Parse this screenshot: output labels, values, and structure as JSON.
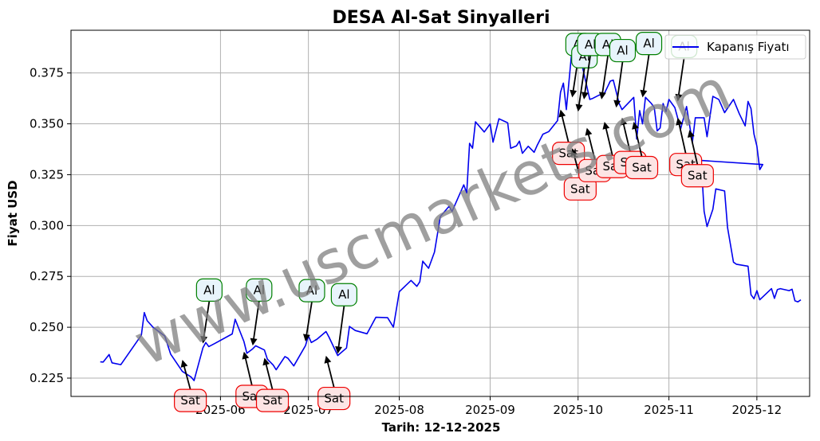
{
  "chart_data": {
    "type": "line",
    "title": "DESA Al-Sat Sinyalleri",
    "xlabel": "Tarih: 12-12-2025",
    "ylabel": "Fiyat USD",
    "watermark": "www.uscmarkets.com",
    "ylim": [
      0.216,
      0.396
    ],
    "xlim": [
      "2025-04-11",
      "2025-12-19"
    ],
    "grid": true,
    "legend": {
      "placement": "top-right",
      "entries": [
        "Kapanış Fiyatı"
      ]
    },
    "colors": {
      "line": "#0000ee",
      "buy": "#008000",
      "sell": "#ee0000",
      "buy_fill": "#e8f4fb",
      "sell_fill": "#fde4e4",
      "grid": "#b0b0b0"
    },
    "x_ticks": [
      {
        "date": "2025-06-01",
        "label": "2025-06"
      },
      {
        "date": "2025-07-01",
        "label": "2025-07"
      },
      {
        "date": "2025-08-01",
        "label": "2025-08"
      },
      {
        "date": "2025-09-01",
        "label": "2025-09"
      },
      {
        "date": "2025-10-01",
        "label": "2025-10"
      },
      {
        "date": "2025-11-01",
        "label": "2025-11"
      },
      {
        "date": "2025-12-01",
        "label": "2025-12"
      }
    ],
    "y_ticks": [
      {
        "value": 0.225,
        "label": "0.225"
      },
      {
        "value": 0.25,
        "label": "0.250"
      },
      {
        "value": 0.275,
        "label": "0.275"
      },
      {
        "value": 0.3,
        "label": "0.300"
      },
      {
        "value": 0.325,
        "label": "0.325"
      },
      {
        "value": 0.35,
        "label": "0.350"
      },
      {
        "value": 0.375,
        "label": "0.375"
      }
    ],
    "series": [
      {
        "name": "Kapanış Fiyatı",
        "points": [
          [
            "2025-04-21",
            0.233
          ],
          [
            "2025-04-22",
            0.2329
          ],
          [
            "2025-04-24",
            0.2366
          ],
          [
            "2025-04-25",
            0.2325
          ],
          [
            "2025-04-28",
            0.2316
          ],
          [
            "2025-05-05",
            0.2461
          ],
          [
            "2025-05-06",
            0.2572
          ],
          [
            "2025-05-07",
            0.2532
          ],
          [
            "2025-05-09",
            0.25
          ],
          [
            "2025-05-13",
            0.2457
          ],
          [
            "2025-05-15",
            0.2368
          ],
          [
            "2025-05-19",
            0.2283
          ],
          [
            "2025-05-22",
            0.2255
          ],
          [
            "2025-05-23",
            0.2238
          ],
          [
            "2025-05-26",
            0.2399
          ],
          [
            "2025-05-27",
            0.2425
          ],
          [
            "2025-05-28",
            0.2405
          ],
          [
            "2025-05-30",
            0.242
          ],
          [
            "2025-06-05",
            0.2467
          ],
          [
            "2025-06-06",
            0.2539
          ],
          [
            "2025-06-09",
            0.243
          ],
          [
            "2025-06-10",
            0.2372
          ],
          [
            "2025-06-12",
            0.2394
          ],
          [
            "2025-06-13",
            0.2409
          ],
          [
            "2025-06-16",
            0.2388
          ],
          [
            "2025-06-17",
            0.2343
          ],
          [
            "2025-06-19",
            0.2314
          ],
          [
            "2025-06-20",
            0.2291
          ],
          [
            "2025-06-23",
            0.2356
          ],
          [
            "2025-06-24",
            0.2348
          ],
          [
            "2025-06-26",
            0.231
          ],
          [
            "2025-06-30",
            0.241
          ],
          [
            "2025-07-01",
            0.2458
          ],
          [
            "2025-07-02",
            0.2425
          ],
          [
            "2025-07-04",
            0.2442
          ],
          [
            "2025-07-07",
            0.2479
          ],
          [
            "2025-07-08",
            0.2452
          ],
          [
            "2025-07-11",
            0.2361
          ],
          [
            "2025-07-14",
            0.2398
          ],
          [
            "2025-07-15",
            0.2504
          ],
          [
            "2025-07-17",
            0.2484
          ],
          [
            "2025-07-21",
            0.2468
          ],
          [
            "2025-07-24",
            0.2549
          ],
          [
            "2025-07-28",
            0.2547
          ],
          [
            "2025-07-30",
            0.2501
          ],
          [
            "2025-08-01",
            0.2675
          ],
          [
            "2025-08-05",
            0.273
          ],
          [
            "2025-08-07",
            0.2701
          ],
          [
            "2025-08-08",
            0.2724
          ],
          [
            "2025-08-09",
            0.2825
          ],
          [
            "2025-08-11",
            0.279
          ],
          [
            "2025-08-13",
            0.287
          ],
          [
            "2025-08-15",
            0.3044
          ],
          [
            "2025-08-18",
            0.3095
          ],
          [
            "2025-08-19",
            0.3069
          ],
          [
            "2025-08-23",
            0.32
          ],
          [
            "2025-08-24",
            0.316
          ],
          [
            "2025-08-25",
            0.3404
          ],
          [
            "2025-08-26",
            0.338
          ],
          [
            "2025-08-27",
            0.351
          ],
          [
            "2025-08-30",
            0.346
          ],
          [
            "2025-09-01",
            0.35
          ],
          [
            "2025-09-02",
            0.341
          ],
          [
            "2025-09-04",
            0.3525
          ],
          [
            "2025-09-07",
            0.3505
          ],
          [
            "2025-09-08",
            0.338
          ],
          [
            "2025-09-10",
            0.3392
          ],
          [
            "2025-09-11",
            0.3415
          ],
          [
            "2025-09-12",
            0.3355
          ],
          [
            "2025-09-14",
            0.339
          ],
          [
            "2025-09-16",
            0.336
          ],
          [
            "2025-09-17",
            0.3393
          ],
          [
            "2025-09-19",
            0.3449
          ],
          [
            "2025-09-21",
            0.3462
          ],
          [
            "2025-09-24",
            0.3516
          ],
          [
            "2025-09-25",
            0.3655
          ],
          [
            "2025-09-26",
            0.37
          ],
          [
            "2025-09-27",
            0.357
          ],
          [
            "2025-09-29",
            0.388
          ],
          [
            "2025-10-01",
            0.385
          ],
          [
            "2025-10-02",
            0.381
          ],
          [
            "2025-10-05",
            0.362
          ],
          [
            "2025-10-06",
            0.3625
          ],
          [
            "2025-10-08",
            0.364
          ],
          [
            "2025-10-10",
            0.365
          ],
          [
            "2025-10-12",
            0.371
          ],
          [
            "2025-10-13",
            0.3715
          ],
          [
            "2025-10-15",
            0.36
          ],
          [
            "2025-10-16",
            0.357
          ],
          [
            "2025-10-20",
            0.363
          ],
          [
            "2025-10-21",
            0.3425
          ],
          [
            "2025-10-22",
            0.3565
          ],
          [
            "2025-10-23",
            0.35
          ],
          [
            "2025-10-24",
            0.363
          ],
          [
            "2025-10-26",
            0.36
          ],
          [
            "2025-10-27",
            0.358
          ],
          [
            "2025-10-28",
            0.3465
          ],
          [
            "2025-10-29",
            0.348
          ],
          [
            "2025-10-30",
            0.36
          ],
          [
            "2025-10-31",
            0.356
          ],
          [
            "2025-11-01",
            0.362
          ],
          [
            "2025-11-03",
            0.358
          ],
          [
            "2025-11-05",
            0.3475
          ],
          [
            "2025-11-07",
            0.3585
          ],
          [
            "2025-11-09",
            0.341
          ],
          [
            "2025-11-10",
            0.353
          ],
          [
            "2025-11-13",
            0.353
          ],
          [
            "2025-11-14",
            0.3437
          ],
          [
            "2025-11-16",
            0.3635
          ],
          [
            "2025-11-18",
            0.362
          ],
          [
            "2025-11-20",
            0.3555
          ],
          [
            "2025-11-23",
            0.362
          ],
          [
            "2025-11-25",
            0.355
          ],
          [
            "2025-11-27",
            0.349
          ],
          [
            "2025-11-28",
            0.361
          ],
          [
            "2025-11-29",
            0.3575
          ],
          [
            "2025-11-30",
            0.345
          ],
          [
            "2025-12-01",
            0.339
          ],
          [
            "2025-12-02",
            0.3275
          ],
          [
            "2025-12-03",
            0.33
          ],
          [
            "2025-11-12",
            0.332
          ],
          [
            "2025-11-13",
            0.307
          ],
          [
            "2025-11-14",
            0.2995
          ],
          [
            "2025-11-16",
            0.308
          ],
          [
            "2025-11-17",
            0.318
          ],
          [
            "2025-11-20",
            0.317
          ],
          [
            "2025-11-21",
            0.299
          ],
          [
            "2025-11-23",
            0.282
          ],
          [
            "2025-11-24",
            0.281
          ],
          [
            "2025-11-28",
            0.28
          ],
          [
            "2025-11-29",
            0.266
          ],
          [
            "2025-11-30",
            0.264
          ],
          [
            "2025-12-01",
            0.268
          ],
          [
            "2025-12-02",
            0.2635
          ],
          [
            "2025-12-06",
            0.269
          ],
          [
            "2025-12-07",
            0.2642
          ],
          [
            "2025-12-08",
            0.2685
          ],
          [
            "2025-12-09",
            0.269
          ],
          [
            "2025-12-12",
            0.268
          ],
          [
            "2025-12-13",
            0.2687
          ],
          [
            "2025-12-14",
            0.263
          ],
          [
            "2025-12-15",
            0.2625
          ],
          [
            "2025-12-16",
            0.2635
          ]
        ]
      }
    ],
    "buy_signals": [
      {
        "label": "Al",
        "date": "2025-05-26",
        "price": 0.242,
        "label_price": 0.2683
      },
      {
        "label": "Al",
        "date": "2025-06-12",
        "price": 0.241,
        "label_price": 0.2683
      },
      {
        "label": "Al",
        "date": "2025-06-30",
        "price": 0.243,
        "label_price": 0.268
      },
      {
        "label": "Al",
        "date": "2025-07-11",
        "price": 0.237,
        "label_price": 0.266
      },
      {
        "label": "Al",
        "date": "2025-09-29",
        "price": 0.363,
        "label_price": 0.389
      },
      {
        "label": "Al",
        "date": "2025-10-01",
        "price": 0.356,
        "label_price": 0.383
      },
      {
        "label": "Al",
        "date": "2025-10-03",
        "price": 0.362,
        "label_price": 0.389
      },
      {
        "label": "Al",
        "date": "2025-10-09",
        "price": 0.362,
        "label_price": 0.389
      },
      {
        "label": "Al",
        "date": "2025-10-14",
        "price": 0.358,
        "label_price": 0.386
      },
      {
        "label": "Al",
        "date": "2025-10-23",
        "price": 0.363,
        "label_price": 0.3895
      },
      {
        "label": "Al",
        "date": "2025-11-04",
        "price": 0.361,
        "label_price": 0.388
      }
    ],
    "sell_signals": [
      {
        "label": "Sat",
        "date": "2025-05-19",
        "price": 0.234,
        "label_price": 0.214
      },
      {
        "label": "Sat",
        "date": "2025-06-09",
        "price": 0.238,
        "label_price": 0.216
      },
      {
        "label": "Sat",
        "date": "2025-06-16",
        "price": 0.235,
        "label_price": 0.214
      },
      {
        "label": "Sat",
        "date": "2025-07-07",
        "price": 0.236,
        "label_price": 0.215
      },
      {
        "label": "Sat",
        "date": "2025-09-25",
        "price": 0.357,
        "label_price": 0.3355
      },
      {
        "label": "Sat",
        "date": "2025-09-29",
        "price": 0.338,
        "label_price": 0.318
      },
      {
        "label": "Sat",
        "date": "2025-10-04",
        "price": 0.348,
        "label_price": 0.327
      },
      {
        "label": "Sat",
        "date": "2025-10-10",
        "price": 0.351,
        "label_price": 0.329
      },
      {
        "label": "Sat",
        "date": "2025-10-16",
        "price": 0.353,
        "label_price": 0.331
      },
      {
        "label": "Sat",
        "date": "2025-10-20",
        "price": 0.351,
        "label_price": 0.3285
      },
      {
        "label": "Sat",
        "date": "2025-11-04",
        "price": 0.353,
        "label_price": 0.33
      },
      {
        "label": "Sat",
        "date": "2025-11-08",
        "price": 0.347,
        "label_price": 0.3245
      }
    ]
  }
}
